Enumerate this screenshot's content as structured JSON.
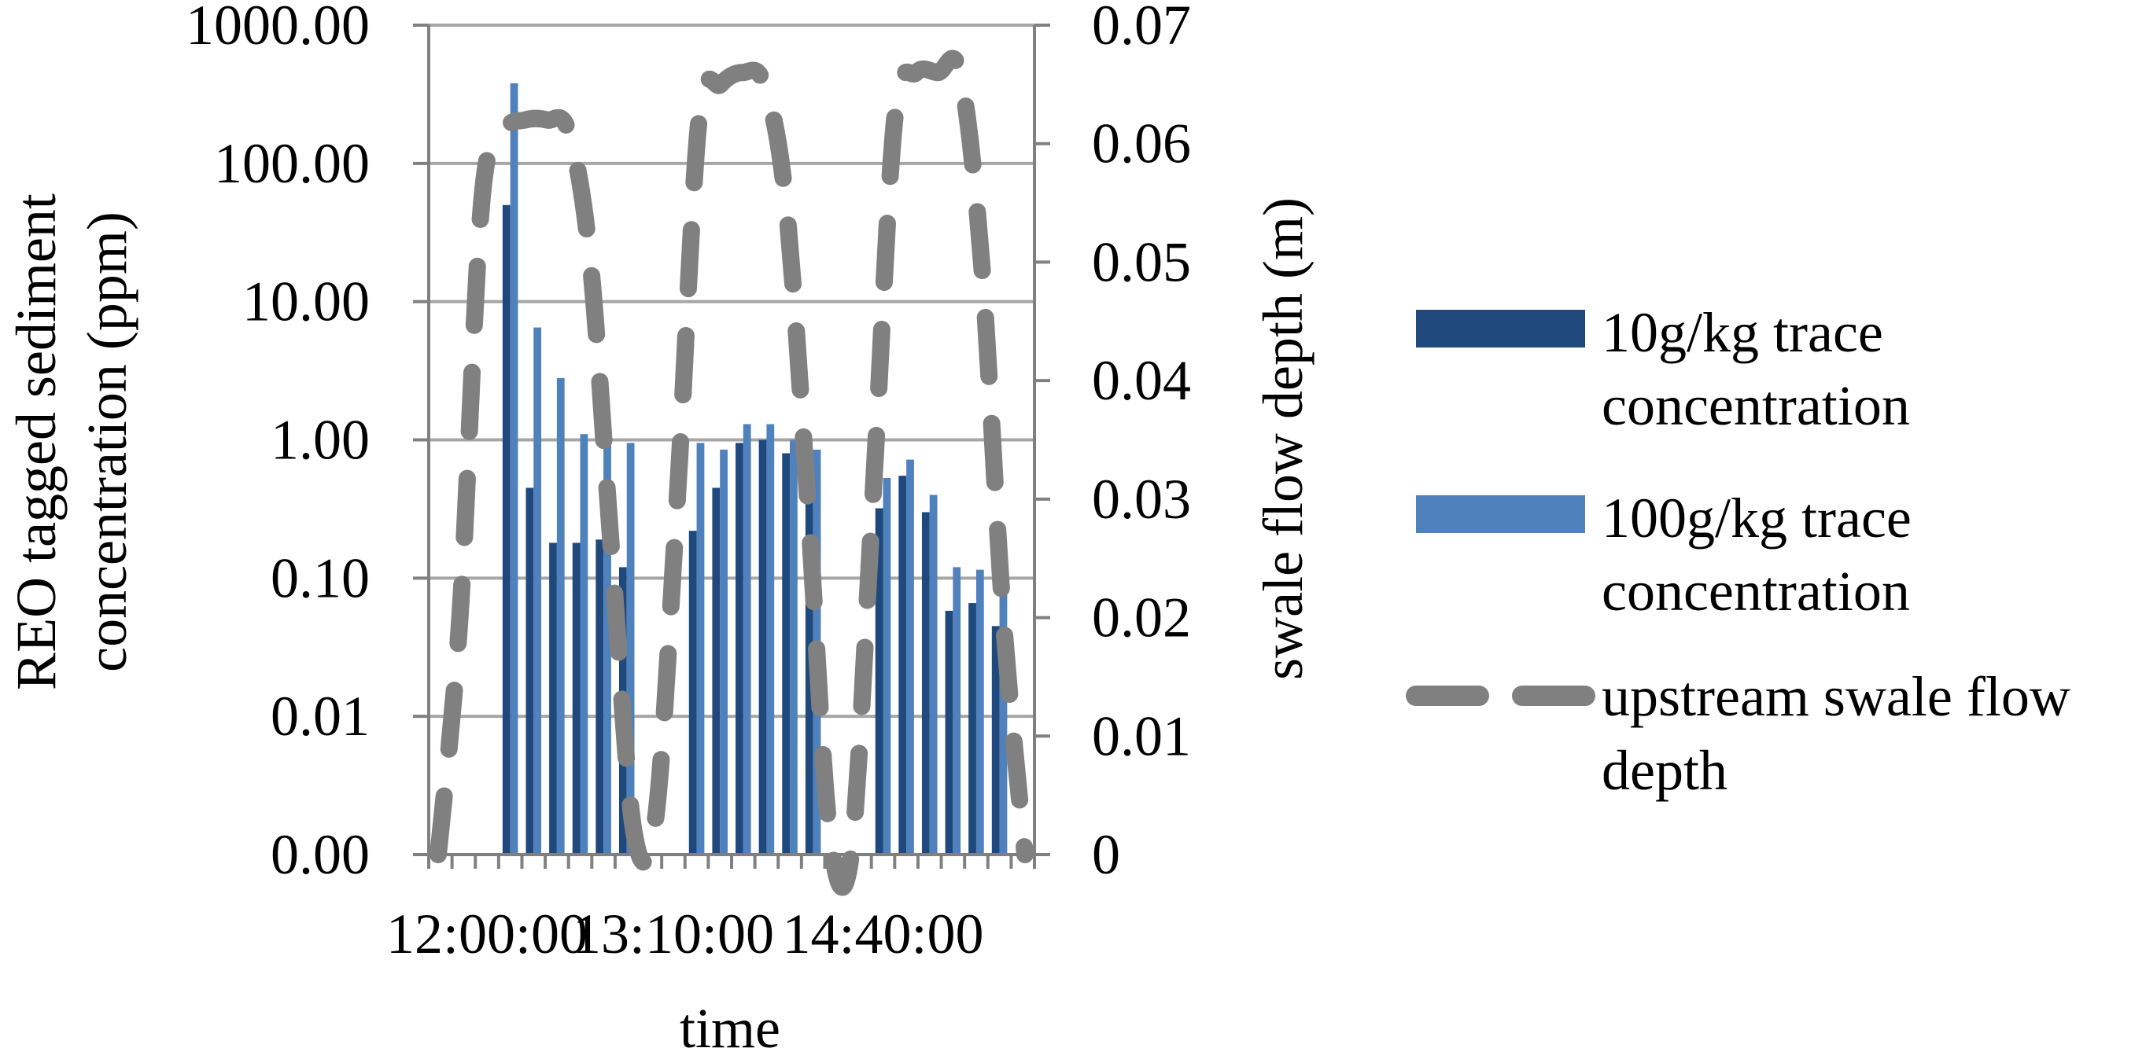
{
  "chart_data": {
    "type": "bar",
    "title": "",
    "xlabel": "time",
    "ylabel_left": "REO tagged sediment concentration (ppm)",
    "ylabel_right": "swale flow depth (m)",
    "y_left_scale": "log",
    "y_left_ticks": [
      "0.00",
      "0.01",
      "0.10",
      "1.00",
      "10.00",
      "100.00",
      "1000.00"
    ],
    "y_right_ticks": [
      "0",
      "0.01",
      "0.02",
      "0.03",
      "0.04",
      "0.05",
      "0.06",
      "0.07"
    ],
    "ylim_right": [
      0,
      0.07
    ],
    "x_tick_labels": [
      {
        "label": "12:00:00",
        "index": 2
      },
      {
        "label": "13:10:00",
        "index": 10
      },
      {
        "label": "14:40:00",
        "index": 19
      }
    ],
    "grid": "horizontal",
    "legend_position": "right",
    "bar_colors": {
      "s10": "#1f497d",
      "s100": "#4f81bd"
    },
    "line_color": "#808080",
    "series": [
      {
        "name": "10g/kg trace concentration",
        "kind": "bar",
        "values": [
          0.001,
          0.001,
          0.001,
          50,
          0.45,
          0.18,
          0.18,
          0.19,
          0.12,
          0.001,
          0.001,
          0.22,
          0.45,
          0.95,
          1.0,
          0.8,
          0.75,
          0.001,
          0.001,
          0.32,
          0.55,
          0.3,
          0.058,
          0.066,
          0.045,
          0.001
        ]
      },
      {
        "name": "100g/kg trace concentration",
        "kind": "bar",
        "values": [
          0.001,
          0.001,
          0.001,
          380,
          6.5,
          2.8,
          1.1,
          1.1,
          0.95,
          0.001,
          0.001,
          0.95,
          0.85,
          1.3,
          1.3,
          1.0,
          0.85,
          0.001,
          0.001,
          0.53,
          0.72,
          0.4,
          0.12,
          0.115,
          0.085,
          0.001
        ]
      },
      {
        "name": "upstream swale flow depth",
        "kind": "line",
        "axis": "right",
        "values": [
          0.0,
          0.02,
          0.055,
          0.061,
          0.062,
          0.062,
          0.061,
          0.05,
          0.025,
          0.002,
          0.003,
          0.03,
          0.062,
          0.065,
          0.066,
          0.065,
          0.055,
          0.03,
          0.002,
          0.0,
          0.03,
          0.062,
          0.066,
          0.066,
          0.066,
          0.05,
          0.02,
          0.0
        ]
      }
    ]
  }
}
